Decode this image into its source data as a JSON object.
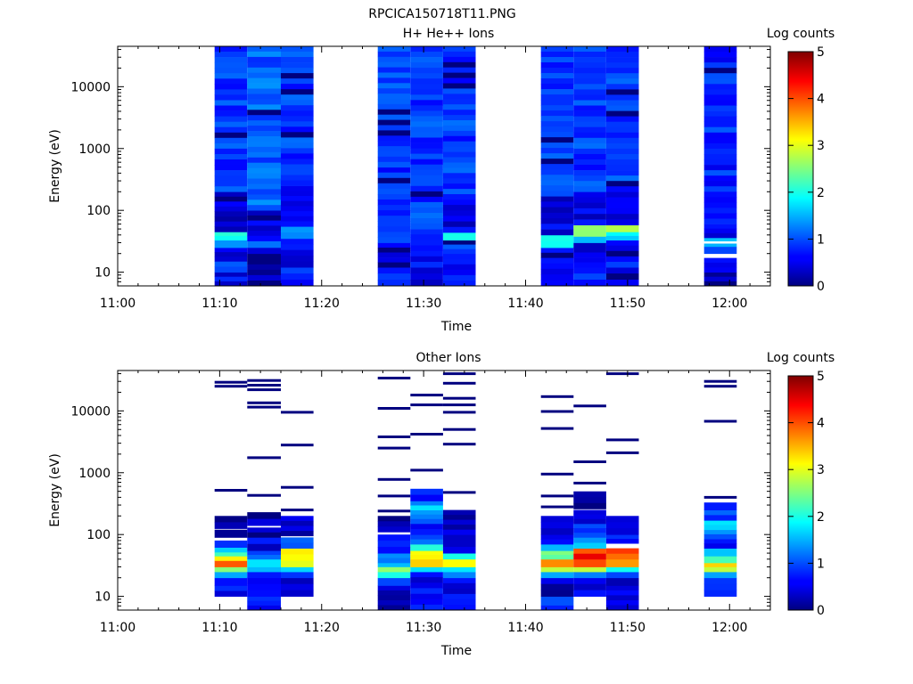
{
  "figure_title": "RPCICA150718T11.PNG",
  "chart_data": [
    {
      "type": "heatmap",
      "title": "H+ He++ Ions",
      "xlabel": "Time",
      "ylabel": "Energy (eV)",
      "x_ticks": [
        "11:00",
        "11:10",
        "11:20",
        "11:30",
        "11:40",
        "11:50",
        "12:00"
      ],
      "x_range_minutes": [
        0,
        64
      ],
      "y_scale": "log",
      "y_ticks": [
        "10",
        "100",
        "1000",
        "10000"
      ],
      "y_range": [
        6,
        45000
      ],
      "colorbar": {
        "label": "Log counts",
        "range": [
          0,
          5
        ],
        "ticks": [
          "0",
          "1",
          "2",
          "3",
          "4",
          "5"
        ]
      },
      "columns": [
        {
          "t0": 9.5,
          "t1": 12.7,
          "bands": [
            {
              "lo": 6,
              "hi": 10,
              "v": 0.6
            },
            {
              "lo": 10,
              "hi": 15,
              "v": 0.8
            },
            {
              "lo": 15,
              "hi": 25,
              "v": 0.6
            },
            {
              "lo": 25,
              "hi": 33,
              "v": 1.2
            },
            {
              "lo": 33,
              "hi": 45,
              "v": 1.9
            },
            {
              "lo": 45,
              "hi": 80,
              "v": 0.4
            },
            {
              "lo": 80,
              "hi": 200,
              "v": 0.5
            },
            {
              "lo": 200,
              "hi": 45000,
              "v": 0.9
            }
          ]
        },
        {
          "t0": 12.7,
          "t1": 16.0,
          "bands": [
            {
              "lo": 6,
              "hi": 20,
              "v": 0.2
            },
            {
              "lo": 20,
              "hi": 25,
              "v": 0.6
            },
            {
              "lo": 25,
              "hi": 32,
              "v": 1.4
            },
            {
              "lo": 32,
              "hi": 100,
              "v": 0.5
            },
            {
              "lo": 100,
              "hi": 45000,
              "v": 1.1
            }
          ]
        },
        {
          "t0": 16.0,
          "t1": 19.2,
          "bands": [
            {
              "lo": 6,
              "hi": 12,
              "v": 0.7
            },
            {
              "lo": 12,
              "hi": 35,
              "v": 0.5
            },
            {
              "lo": 35,
              "hi": 55,
              "v": 1.3
            },
            {
              "lo": 55,
              "hi": 250,
              "v": 0.6
            },
            {
              "lo": 250,
              "hi": 45000,
              "v": 0.9
            }
          ]
        },
        {
          "t0": 25.5,
          "t1": 28.7,
          "bands": [
            {
              "lo": 6,
              "hi": 12,
              "v": 0.7
            },
            {
              "lo": 12,
              "hi": 30,
              "v": 0.6
            },
            {
              "lo": 30,
              "hi": 500,
              "v": 0.8
            },
            {
              "lo": 500,
              "hi": 45000,
              "v": 0.9
            }
          ]
        },
        {
          "t0": 28.7,
          "t1": 31.9,
          "bands": [
            {
              "lo": 6,
              "hi": 12,
              "v": 0.3
            },
            {
              "lo": 12,
              "hi": 50,
              "v": 0.7
            },
            {
              "lo": 50,
              "hi": 45000,
              "v": 0.9
            }
          ]
        },
        {
          "t0": 31.9,
          "t1": 35.1,
          "bands": [
            {
              "lo": 6,
              "hi": 20,
              "v": 0.6
            },
            {
              "lo": 20,
              "hi": 33,
              "v": 0.8
            },
            {
              "lo": 33,
              "hi": 44,
              "v": 1.9
            },
            {
              "lo": 44,
              "hi": 150,
              "v": 0.5
            },
            {
              "lo": 150,
              "hi": 45000,
              "v": 0.9
            }
          ]
        },
        {
          "t0": 41.5,
          "t1": 44.7,
          "bands": [
            {
              "lo": 6,
              "hi": 14,
              "v": 0.7
            },
            {
              "lo": 14,
              "hi": 25,
              "v": 0.5
            },
            {
              "lo": 25,
              "hi": 40,
              "v": 1.9
            },
            {
              "lo": 40,
              "hi": 170,
              "v": 0.5
            },
            {
              "lo": 170,
              "hi": 45000,
              "v": 0.9
            }
          ]
        },
        {
          "t0": 44.7,
          "t1": 47.9,
          "bands": [
            {
              "lo": 6,
              "hi": 12,
              "v": 0.7
            },
            {
              "lo": 12,
              "hi": 30,
              "v": 0.4
            },
            {
              "lo": 30,
              "hi": 38,
              "v": 1.3
            },
            {
              "lo": 38,
              "hi": 58,
              "v": 2.4
            },
            {
              "lo": 58,
              "hi": 200,
              "v": 0.5
            },
            {
              "lo": 200,
              "hi": 45000,
              "v": 0.9
            }
          ]
        },
        {
          "t0": 47.9,
          "t1": 51.1,
          "bands": [
            {
              "lo": 6,
              "hi": 12,
              "v": 0.6
            },
            {
              "lo": 12,
              "hi": 33,
              "v": 0.7
            },
            {
              "lo": 33,
              "hi": 45,
              "v": 1.6
            },
            {
              "lo": 45,
              "hi": 58,
              "v": 2.6
            },
            {
              "lo": 58,
              "hi": 200,
              "v": 0.5
            },
            {
              "lo": 200,
              "hi": 45000,
              "v": 0.9
            }
          ]
        },
        {
          "t0": 57.5,
          "t1": 60.7,
          "bands": [
            {
              "lo": 6,
              "hi": 10,
              "v": 0.2
            },
            {
              "lo": 10,
              "hi": 17,
              "v": 0.7
            },
            {
              "lo": 17,
              "hi": 20,
              "v": -1
            },
            {
              "lo": 20,
              "hi": 26,
              "v": 0.8
            },
            {
              "lo": 26,
              "hi": 29,
              "v": 1.7
            },
            {
              "lo": 29,
              "hi": 32,
              "v": -1
            },
            {
              "lo": 32,
              "hi": 36,
              "v": 1.5
            },
            {
              "lo": 36,
              "hi": 60,
              "v": 0.5
            },
            {
              "lo": 60,
              "hi": 45000,
              "v": 0.8
            }
          ]
        }
      ]
    },
    {
      "type": "heatmap",
      "title": "Other Ions",
      "xlabel": "Time",
      "ylabel": "Energy (eV)",
      "x_ticks": [
        "11:00",
        "11:10",
        "11:20",
        "11:30",
        "11:40",
        "11:50",
        "12:00"
      ],
      "x_range_minutes": [
        0,
        64
      ],
      "y_scale": "log",
      "y_ticks": [
        "10",
        "100",
        "1000",
        "10000"
      ],
      "y_range": [
        6,
        45000
      ],
      "colorbar": {
        "label": "Log counts",
        "range": [
          0,
          5
        ],
        "ticks": [
          "0",
          "1",
          "2",
          "3",
          "4",
          "5"
        ]
      },
      "columns": [
        {
          "t0": 9.5,
          "t1": 12.7,
          "bands": [
            {
              "lo": 10,
              "hi": 15,
              "v": 0.6
            },
            {
              "lo": 15,
              "hi": 20,
              "v": 0.8
            },
            {
              "lo": 20,
              "hi": 25,
              "v": 1.4
            },
            {
              "lo": 25,
              "hi": 30,
              "v": 2.6
            },
            {
              "lo": 30,
              "hi": 38,
              "v": 3.8
            },
            {
              "lo": 38,
              "hi": 45,
              "v": 3.3
            },
            {
              "lo": 45,
              "hi": 52,
              "v": 2.1
            },
            {
              "lo": 52,
              "hi": 62,
              "v": 1.4
            },
            {
              "lo": 62,
              "hi": 80,
              "v": 0.7
            },
            {
              "lo": 90,
              "hi": 120,
              "v": 0.3
            },
            {
              "lo": 125,
              "hi": 200,
              "v": 0.2
            }
          ],
          "lines": [
            520,
            25000,
            29000
          ]
        },
        {
          "t0": 12.7,
          "t1": 16.0,
          "bands": [
            {
              "lo": 6,
              "hi": 10,
              "v": 0.7
            },
            {
              "lo": 10,
              "hi": 20,
              "v": 0.4
            },
            {
              "lo": 20,
              "hi": 25,
              "v": 1.0
            },
            {
              "lo": 25,
              "hi": 30,
              "v": 1.4
            },
            {
              "lo": 30,
              "hi": 40,
              "v": 1.9
            },
            {
              "lo": 40,
              "hi": 55,
              "v": 1.2
            },
            {
              "lo": 55,
              "hi": 90,
              "v": 0.5
            },
            {
              "lo": 90,
              "hi": 130,
              "v": 0.2
            },
            {
              "lo": 140,
              "hi": 230,
              "v": 0.2
            }
          ],
          "lines": [
            430,
            1750,
            11500,
            13500,
            22000,
            26000,
            31000
          ]
        },
        {
          "t0": 16.0,
          "t1": 19.2,
          "bands": [
            {
              "lo": 10,
              "hi": 20,
              "v": 0.4
            },
            {
              "lo": 20,
              "hi": 25,
              "v": 0.9
            },
            {
              "lo": 25,
              "hi": 30,
              "v": 1.9
            },
            {
              "lo": 30,
              "hi": 38,
              "v": 2.8
            },
            {
              "lo": 38,
              "hi": 60,
              "v": 3.3
            },
            {
              "lo": 60,
              "hi": 90,
              "v": 1.2
            },
            {
              "lo": 95,
              "hi": 200,
              "v": 0.3
            }
          ],
          "lines": [
            250,
            580,
            2800,
            9500
          ]
        },
        {
          "t0": 25.5,
          "t1": 28.7,
          "bands": [
            {
              "lo": 6,
              "hi": 15,
              "v": 0.2
            },
            {
              "lo": 15,
              "hi": 20,
              "v": 0.8
            },
            {
              "lo": 20,
              "hi": 25,
              "v": 1.8
            },
            {
              "lo": 25,
              "hi": 30,
              "v": 2.4
            },
            {
              "lo": 30,
              "hi": 35,
              "v": 1.8
            },
            {
              "lo": 35,
              "hi": 50,
              "v": 1.1
            },
            {
              "lo": 50,
              "hi": 100,
              "v": 0.6
            },
            {
              "lo": 110,
              "hi": 200,
              "v": 0.2
            }
          ],
          "lines": [
            240,
            420,
            780,
            2500,
            3800,
            11000,
            34000
          ]
        },
        {
          "t0": 28.7,
          "t1": 31.9,
          "bands": [
            {
              "lo": 6,
              "hi": 25,
              "v": 0.6
            },
            {
              "lo": 25,
              "hi": 30,
              "v": 1.9
            },
            {
              "lo": 30,
              "hi": 40,
              "v": 3.5
            },
            {
              "lo": 40,
              "hi": 55,
              "v": 3.2
            },
            {
              "lo": 55,
              "hi": 70,
              "v": 1.8
            },
            {
              "lo": 70,
              "hi": 100,
              "v": 1.1
            },
            {
              "lo": 100,
              "hi": 150,
              "v": 0.7
            },
            {
              "lo": 150,
              "hi": 250,
              "v": 1.2
            },
            {
              "lo": 250,
              "hi": 350,
              "v": 1.5
            },
            {
              "lo": 350,
              "hi": 550,
              "v": 0.8
            }
          ],
          "lines": [
            1100,
            4200,
            12500,
            18000
          ]
        },
        {
          "t0": 31.9,
          "t1": 35.1,
          "bands": [
            {
              "lo": 6,
              "hi": 20,
              "v": 0.6
            },
            {
              "lo": 20,
              "hi": 25,
              "v": 1.2
            },
            {
              "lo": 25,
              "hi": 30,
              "v": 2.0
            },
            {
              "lo": 30,
              "hi": 40,
              "v": 3.4
            },
            {
              "lo": 40,
              "hi": 50,
              "v": 1.9
            },
            {
              "lo": 50,
              "hi": 100,
              "v": 0.6
            },
            {
              "lo": 100,
              "hi": 250,
              "v": 0.3
            }
          ],
          "lines": [
            480,
            2900,
            5000,
            9500,
            12500,
            16000,
            28000,
            40000
          ]
        },
        {
          "t0": 41.5,
          "t1": 44.7,
          "bands": [
            {
              "lo": 6,
              "hi": 10,
              "v": 0.8
            },
            {
              "lo": 10,
              "hi": 20,
              "v": 0.3
            },
            {
              "lo": 20,
              "hi": 25,
              "v": 1.6
            },
            {
              "lo": 25,
              "hi": 30,
              "v": 2.8
            },
            {
              "lo": 30,
              "hi": 40,
              "v": 3.7
            },
            {
              "lo": 40,
              "hi": 55,
              "v": 2.6
            },
            {
              "lo": 55,
              "hi": 70,
              "v": 1.4
            },
            {
              "lo": 70,
              "hi": 100,
              "v": 0.5
            },
            {
              "lo": 100,
              "hi": 200,
              "v": 0.3
            }
          ],
          "lines": [
            280,
            420,
            950,
            5200,
            9800,
            17000
          ]
        },
        {
          "t0": 44.7,
          "t1": 47.9,
          "bands": [
            {
              "lo": 6,
              "hi": 10,
              "v": -1
            },
            {
              "lo": 10,
              "hi": 20,
              "v": 0.6
            },
            {
              "lo": 20,
              "hi": 25,
              "v": 1.0
            },
            {
              "lo": 25,
              "hi": 30,
              "v": 2.8
            },
            {
              "lo": 30,
              "hi": 40,
              "v": 3.8
            },
            {
              "lo": 40,
              "hi": 60,
              "v": 4.2
            },
            {
              "lo": 60,
              "hi": 90,
              "v": 1.5
            },
            {
              "lo": 90,
              "hi": 150,
              "v": 0.8
            },
            {
              "lo": 150,
              "hi": 250,
              "v": 0.3
            },
            {
              "lo": 260,
              "hi": 500,
              "v": 0.2
            }
          ],
          "lines": [
            680,
            1500,
            12000
          ]
        },
        {
          "t0": 47.9,
          "t1": 51.1,
          "bands": [
            {
              "lo": 6,
              "hi": 15,
              "v": 0.6
            },
            {
              "lo": 15,
              "hi": 20,
              "v": 0.4
            },
            {
              "lo": 20,
              "hi": 25,
              "v": 0.9
            },
            {
              "lo": 25,
              "hi": 30,
              "v": 1.8
            },
            {
              "lo": 30,
              "hi": 40,
              "v": 3.4
            },
            {
              "lo": 40,
              "hi": 60,
              "v": 3.9
            },
            {
              "lo": 72,
              "hi": 100,
              "v": 0.8
            },
            {
              "lo": 100,
              "hi": 200,
              "v": 0.4
            }
          ],
          "lines": [
            2100,
            3400,
            40000
          ]
        },
        {
          "t0": 57.5,
          "t1": 60.7,
          "bands": [
            {
              "lo": 10,
              "hi": 20,
              "v": 0.7
            },
            {
              "lo": 20,
              "hi": 25,
              "v": 1.6
            },
            {
              "lo": 25,
              "hi": 30,
              "v": 2.6
            },
            {
              "lo": 30,
              "hi": 35,
              "v": 3.6
            },
            {
              "lo": 35,
              "hi": 45,
              "v": 2.4
            },
            {
              "lo": 45,
              "hi": 60,
              "v": 1.5
            },
            {
              "lo": 60,
              "hi": 85,
              "v": 0.6
            },
            {
              "lo": 85,
              "hi": 120,
              "v": 1.2
            },
            {
              "lo": 120,
              "hi": 170,
              "v": 1.6
            },
            {
              "lo": 170,
              "hi": 250,
              "v": 0.9
            },
            {
              "lo": 250,
              "hi": 330,
              "v": 0.6
            }
          ],
          "lines": [
            400,
            6800,
            25000,
            30000
          ]
        }
      ]
    }
  ]
}
